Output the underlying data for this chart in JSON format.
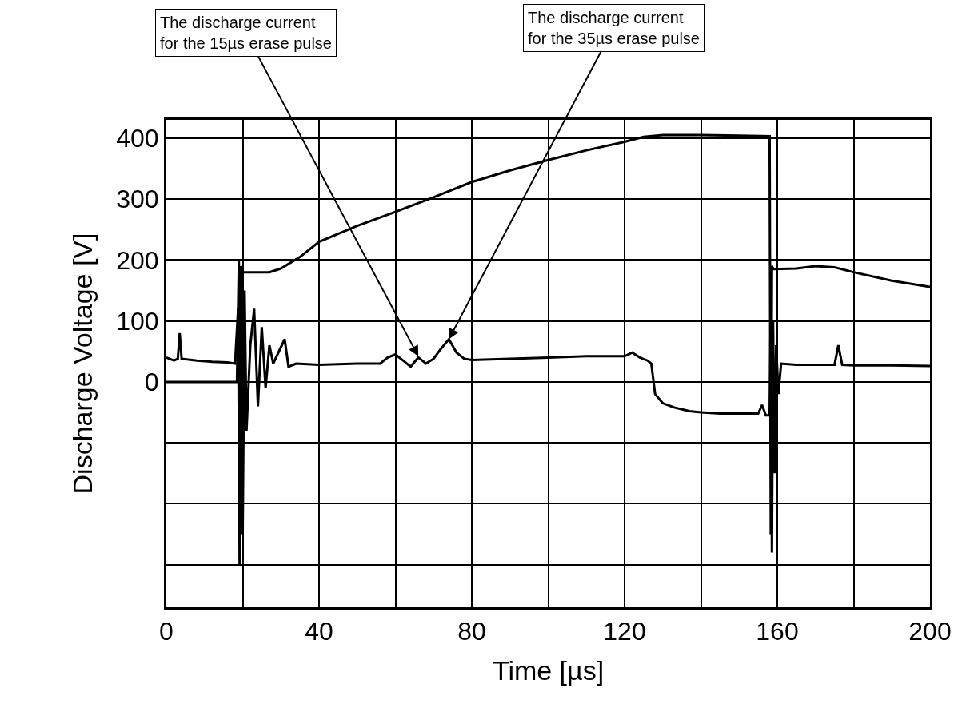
{
  "chart_data": {
    "type": "line",
    "xlabel": "Time [µs]",
    "ylabel": "Discharge Voltage [V]",
    "xlim": [
      0,
      200
    ],
    "xticks": [
      0,
      {
        "value": 20,
        "label": null
      },
      40,
      {
        "value": 60,
        "label": null
      },
      80,
      {
        "value": 100,
        "label": null
      },
      120,
      {
        "value": 140,
        "label": null
      },
      160,
      {
        "value": 180,
        "label": null
      },
      200
    ],
    "ylim": [
      -370,
      430
    ],
    "yticks": [
      {
        "value": -300,
        "label": null
      },
      {
        "value": -200,
        "label": null
      },
      {
        "value": -100,
        "label": null
      },
      0,
      100,
      200,
      300,
      400
    ],
    "grid": true,
    "marker": "none",
    "line_style": "solid",
    "series": [
      {
        "color": "#000000",
        "x": [
          0,
          18,
          18.5,
          19,
          19.3,
          19.6,
          20,
          27,
          30,
          35,
          40,
          50,
          60,
          70,
          80,
          90,
          100,
          110,
          120,
          125,
          130,
          140,
          150,
          158,
          158.3,
          158.6,
          159,
          165,
          170,
          175,
          180,
          190,
          200
        ],
        "values": [
          0,
          0,
          0,
          200,
          -290,
          190,
          180,
          180,
          186,
          205,
          230,
          256,
          279,
          303,
          328,
          347,
          364,
          380,
          394,
          402,
          405,
          405,
          404,
          403,
          -250,
          190,
          185,
          186,
          190,
          188,
          180,
          166,
          156
        ]
      },
      {
        "color": "#000000",
        "x": [
          0,
          2,
          3,
          3.5,
          4,
          8,
          12,
          16,
          18,
          18.8,
          19.2,
          19.6,
          20,
          20.5,
          21,
          22,
          23,
          24,
          25,
          26,
          27,
          28,
          31,
          32,
          34,
          40,
          50,
          56,
          58,
          60,
          62,
          64,
          66,
          68,
          70,
          72,
          74,
          76,
          78,
          80,
          90,
          100,
          110,
          120,
          122,
          124,
          126,
          127,
          128,
          130,
          133,
          137,
          140,
          145,
          150,
          155,
          156,
          157,
          158,
          158.3,
          158.6,
          158.9,
          159.3,
          159.7,
          160.3,
          161,
          165,
          170,
          175,
          176,
          177,
          180,
          190,
          200
        ],
        "values": [
          40,
          35,
          38,
          80,
          38,
          35,
          33,
          32,
          30,
          120,
          -300,
          180,
          -250,
          150,
          -80,
          60,
          120,
          -40,
          90,
          -10,
          60,
          30,
          70,
          25,
          30,
          28,
          30,
          30,
          40,
          45,
          35,
          25,
          40,
          30,
          38,
          55,
          70,
          48,
          38,
          36,
          38,
          40,
          42,
          42,
          48,
          40,
          35,
          30,
          -20,
          -35,
          -42,
          -48,
          -50,
          -52,
          -52,
          -52,
          -38,
          -55,
          -55,
          130,
          -280,
          100,
          -150,
          60,
          -20,
          30,
          28,
          28,
          28,
          60,
          28,
          27,
          27,
          26
        ]
      }
    ],
    "annotations": [
      {
        "text": "The discharge current\nfor the 15µs erase pulse",
        "x": 66,
        "y": 42
      },
      {
        "text": "The discharge current\nfor the 35µs erase pulse",
        "x": 74,
        "y": 70
      }
    ]
  }
}
